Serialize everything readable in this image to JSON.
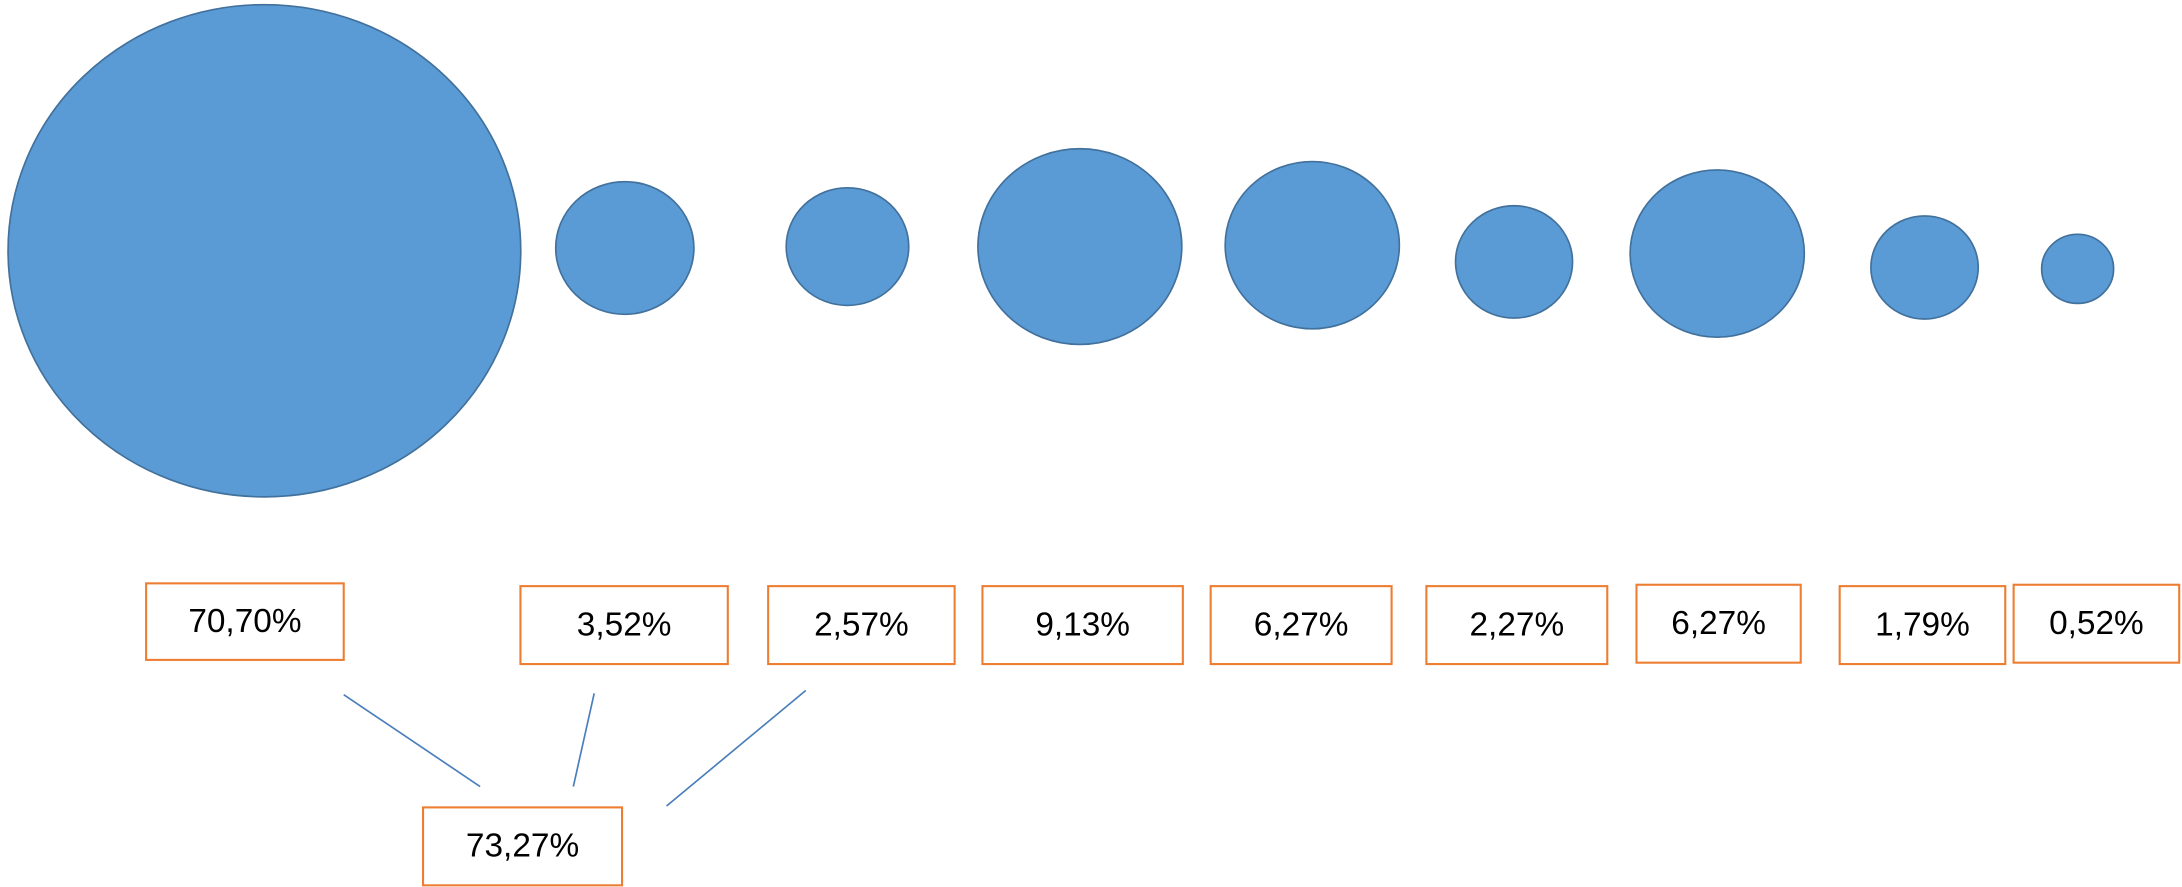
{
  "chart_data": {
    "type": "bubble",
    "values": [
      70.7,
      3.52,
      2.57,
      9.13,
      6.27,
      2.27,
      6.27,
      1.79,
      0.52
    ],
    "value_labels": [
      "70,70%",
      "3,52%",
      "2,57%",
      "9,13%",
      "6,27%",
      "2,27%",
      "6,27%",
      "1,79%",
      "0,52%"
    ],
    "color": "#5b9bd5",
    "label_border_color": "#ed7d31",
    "annotation": {
      "value": 73.27,
      "label": "73,27%"
    }
  }
}
